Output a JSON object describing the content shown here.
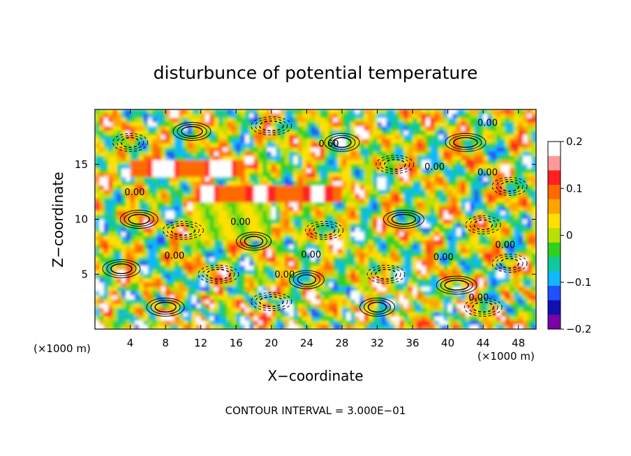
{
  "chart_data": {
    "type": "heatmap",
    "title": "disturbunce of potential temperature",
    "xlabel": "X−coordinate",
    "ylabel": "Z−coordinate",
    "x_unit_label": "(×1000 m)",
    "y_unit_label": "(×1000 m)",
    "footer": "CONTOUR INTERVAL = 3.000E−01",
    "xlim": [
      0,
      50
    ],
    "ylim": [
      0,
      20
    ],
    "x_ticks": [
      4,
      8,
      12,
      16,
      20,
      24,
      28,
      32,
      36,
      40,
      44,
      48
    ],
    "x_tick_labels": [
      "4",
      "8",
      "12",
      "16",
      "20",
      "24",
      "28",
      "32",
      "36",
      "40",
      "44",
      "48"
    ],
    "y_ticks": [
      5,
      10,
      15
    ],
    "y_tick_labels": [
      "5",
      "10",
      "15"
    ],
    "colorbar": {
      "range": [
        -0.2,
        0.2
      ],
      "ticks": [
        0.2,
        0.1,
        0,
        -0.1,
        -0.2
      ],
      "tick_labels": [
        "0.2",
        "0.1",
        "0",
        "−0.1",
        "−0.2"
      ],
      "colors": [
        "#ffffff",
        "#ff9a9a",
        "#ff2020",
        "#ff6a00",
        "#ffa500",
        "#ffe000",
        "#b8e000",
        "#30d020",
        "#10c8a0",
        "#10b8ff",
        "#2050ff",
        "#1010b0",
        "#7a00a8"
      ]
    },
    "contour_labels": [
      {
        "text": "0.00",
        "x": 44.5,
        "z": 18.5
      },
      {
        "text": "0.60",
        "x": 26.5,
        "z": 16.6
      },
      {
        "text": "0.00",
        "x": 38.5,
        "z": 14.5
      },
      {
        "text": "0.00",
        "x": 44.5,
        "z": 14.0
      },
      {
        "text": "0.00",
        "x": 4.5,
        "z": 12.2
      },
      {
        "text": "0.00",
        "x": 16.5,
        "z": 9.5
      },
      {
        "text": "0.00",
        "x": 9,
        "z": 6.4
      },
      {
        "text": "0.00",
        "x": 24.5,
        "z": 6.5
      },
      {
        "text": "0.00",
        "x": 39.5,
        "z": 6.3
      },
      {
        "text": "0.00",
        "x": 46.5,
        "z": 7.4
      },
      {
        "text": "0.00",
        "x": 21.5,
        "z": 4.7
      },
      {
        "text": "0.00",
        "x": 43.5,
        "z": 2.6
      }
    ]
  }
}
